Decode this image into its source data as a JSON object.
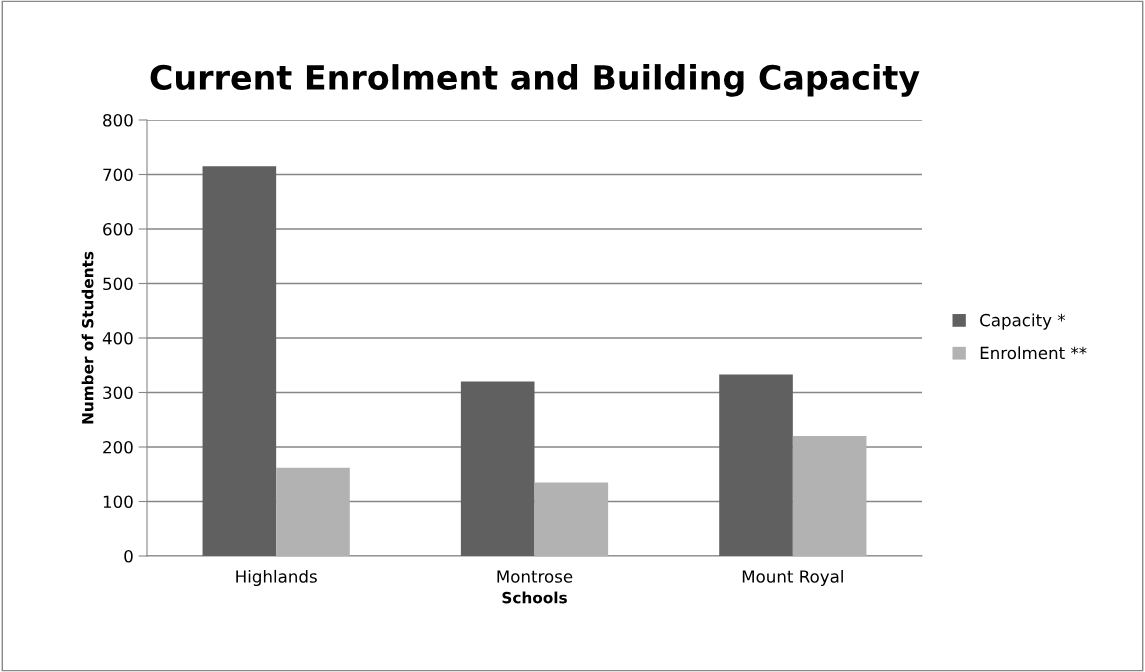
{
  "chart_data": {
    "type": "bar",
    "title": "Current Enrolment and Building Capacity",
    "xlabel": "Schools",
    "ylabel": "Number of Students",
    "categories": [
      "Highlands",
      "Montrose",
      "Mount Royal"
    ],
    "series": [
      {
        "name": "Capacity *",
        "color": "#606060",
        "values": [
          715,
          320,
          333
        ]
      },
      {
        "name": "Enrolment **",
        "color": "#b2b2b2",
        "values": [
          162,
          135,
          220
        ]
      }
    ],
    "ylim": [
      0,
      800
    ],
    "yticks": [
      0,
      100,
      200,
      300,
      400,
      500,
      600,
      700,
      800
    ],
    "grid": "y",
    "legend": "right"
  }
}
